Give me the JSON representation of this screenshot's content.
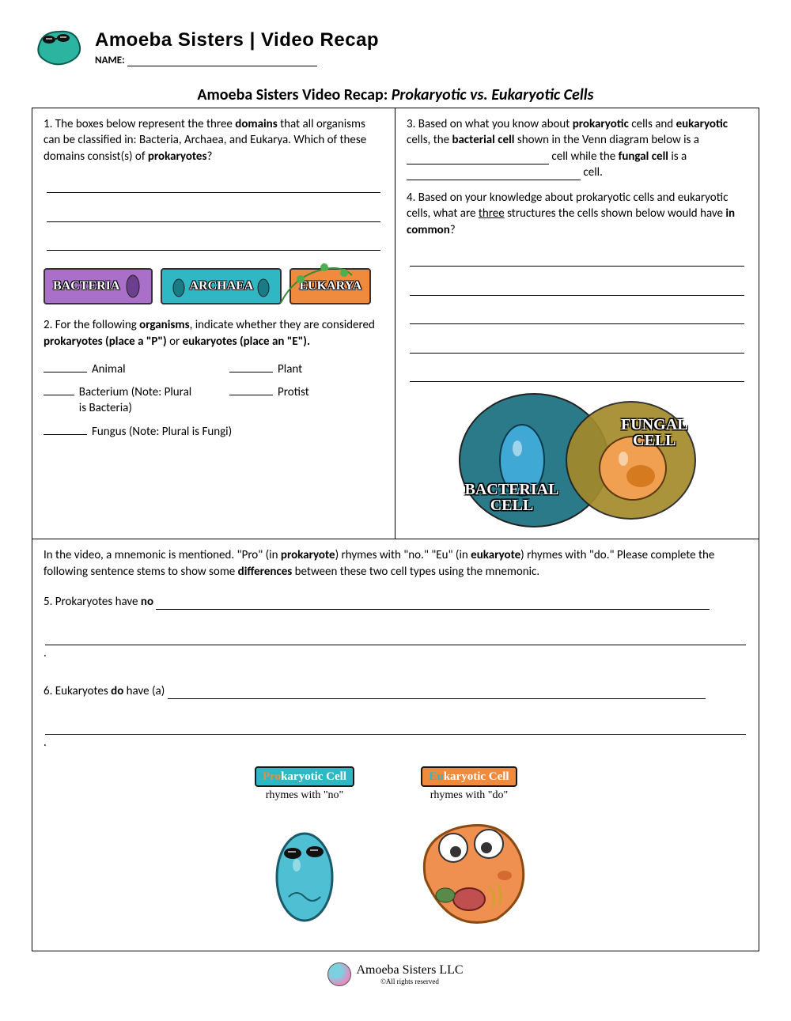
{
  "header": {
    "brand": "Amoeba Sisters | Video Recap",
    "name_label": "NAME:"
  },
  "title_prefix": "Amoeba Sisters Video Recap: ",
  "title_topic": "Prokaryotic vs. Eukaryotic Cells",
  "q1": {
    "text_pre": "1. The boxes below represent the three ",
    "bold1": "domains",
    "text_mid": " that all organisms can be classified in: Bacteria, Archaea, and Eukarya. Which of these domains consist(s) of ",
    "bold2": "prokaryotes",
    "text_post": "?"
  },
  "domains": [
    {
      "label": "BACTERIA",
      "bg": "#a96fc9"
    },
    {
      "label": "ARCHAEA",
      "bg": "#2fb8c4"
    },
    {
      "label": "EUKARYA",
      "bg": "#f08a3c"
    }
  ],
  "q2": {
    "text_pre": "2. For the following ",
    "b1": "organisms",
    "text_mid1": ", indicate whether they are considered ",
    "b2": "prokaryotes (place a \"P\")",
    "text_mid2": " or ",
    "b3": "eukaryotes (place an \"E\").",
    "items": [
      [
        "Animal",
        "Plant"
      ],
      [
        "Bacterium (Note: Plural is Bacteria)",
        "Protist"
      ],
      [
        "Fungus (Note: Plural is Fungi)",
        ""
      ]
    ]
  },
  "q3": {
    "p1a": "3. Based on what you know about ",
    "p1b": "prokaryotic",
    "p1c": " cells and ",
    "p1d": "eukaryotic",
    "p1e": " cells, the ",
    "p1f": "bacterial cell",
    "p1g": " shown in the Venn diagram below is a ",
    "p1h": " cell while the ",
    "p1i": "fungal cell",
    "p1j": " is a ",
    "p1k": " cell."
  },
  "q4": {
    "a": "4. Based on your knowledge about prokaryotic cells and eukaryotic cells, what are ",
    "u": "three",
    "b": " structures the cells shown below would have ",
    "c": "in common",
    "d": "?"
  },
  "venn": {
    "left_label": "BACTERIAL CELL",
    "right_label": "FUNGAL CELL",
    "left_color": "#2a7a8a",
    "right_color": "#a38a2a"
  },
  "mnemonic_intro": {
    "a": "In the video, a mnemonic is mentioned. \"Pro\" (in ",
    "b": "prokaryote",
    "c": ") rhymes with \"no.\" \"Eu\" (in ",
    "d": "eukaryote",
    "e": ") rhymes with \"do.\" Please complete the following sentence stems to show some ",
    "f": "differences",
    "g": " between these two cell types using the mnemonic."
  },
  "q5": {
    "a": "5. Prokaryotes have ",
    "b": "no"
  },
  "q6": {
    "a": "6. Eukaryotes ",
    "b": "do",
    "c": " have (a) "
  },
  "mnemonic_figs": {
    "pro": {
      "prefix": "Pro",
      "rest": "karyotic Cell",
      "sub": "rhymes with \"no\"",
      "bg": "#2fb8c4",
      "prefix_color": "#f08a3c"
    },
    "eu": {
      "prefix": "Eu",
      "rest": "karyotic Cell",
      "sub": "rhymes with \"do\"",
      "bg": "#f08a3c",
      "prefix_color": "#2fb8c4"
    }
  },
  "footer": {
    "brand": "Amoeba Sisters LLC",
    "rights": "©All rights reserved"
  }
}
